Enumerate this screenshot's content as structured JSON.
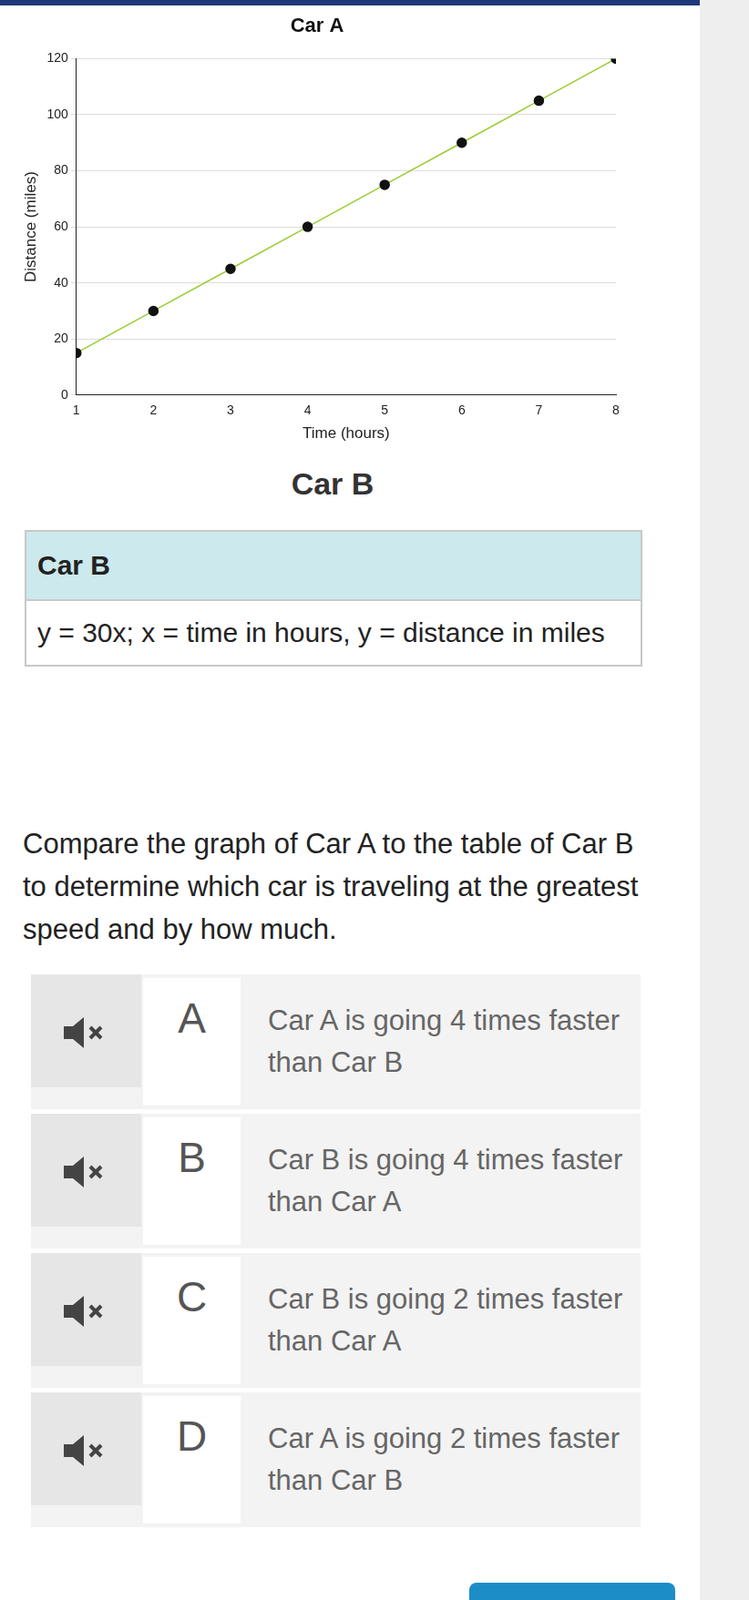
{
  "chart_data": {
    "type": "line",
    "title": "Car A",
    "x_label": "Time (hours)",
    "y_label": "Distance (miles)",
    "x": [
      1,
      2,
      3,
      4,
      5,
      6,
      7,
      8
    ],
    "values": [
      15,
      30,
      45,
      60,
      75,
      90,
      105,
      120
    ],
    "color": "#9acd32",
    "marker": "circle",
    "xlim": [
      1,
      8
    ],
    "xticks": [
      1,
      2,
      3,
      4,
      5,
      6,
      7,
      8
    ],
    "ylim": [
      0,
      120
    ],
    "yticks": [
      0,
      20,
      40,
      60,
      80,
      100,
      120
    ],
    "grid": "y"
  },
  "page": {
    "heading": "Car B",
    "table": {
      "header": "Car B",
      "rows": [
        [
          "y = 30x; x = time in hours, y = distance in miles"
        ]
      ]
    },
    "question": "Compare the graph of Car A to the table of Car B to determine which car is traveling at the greatest speed and by how much.",
    "options": [
      {
        "letter": "A",
        "text": "Car A is going 4 times faster than Car B"
      },
      {
        "letter": "B",
        "text": "Car B is going 4 times faster than Car A"
      },
      {
        "letter": "C",
        "text": "Car B is going 2 times faster than Car A"
      },
      {
        "letter": "D",
        "text": "Car A is going 2 times faster than Car B"
      }
    ]
  }
}
